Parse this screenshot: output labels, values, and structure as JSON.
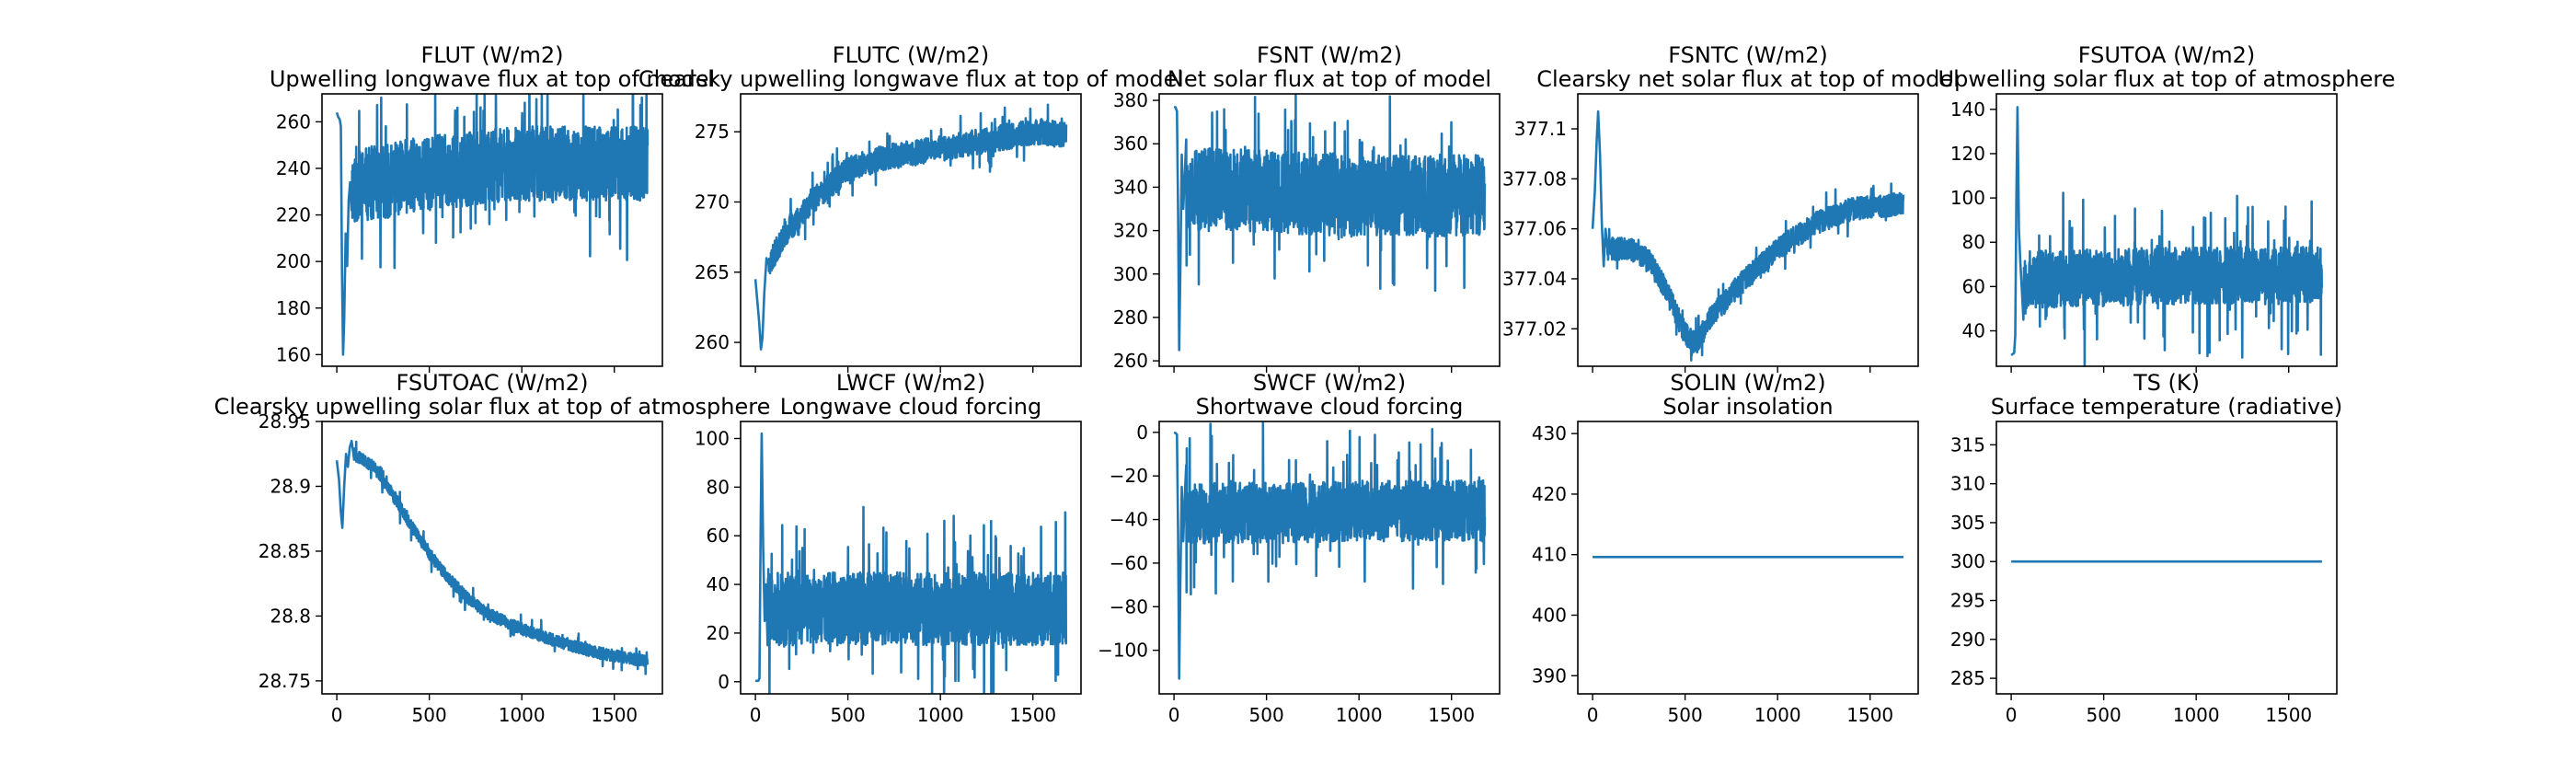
{
  "line_color": "#1f77b4",
  "chart_data": [
    {
      "type": "line",
      "title": "FLUT (W/m2)",
      "subtitle": "Upwelling longwave flux at top of model",
      "xlim": [
        -80,
        1760
      ],
      "ylim": [
        155,
        272
      ],
      "yticks": [
        160,
        180,
        200,
        220,
        240,
        260
      ],
      "xticks": [
        0,
        500,
        1000,
        1500
      ],
      "show_xticklabels": false,
      "series": [
        {
          "profile": "noisy",
          "x_end": 1680,
          "initial": [
            [
              0,
              264
            ],
            [
              8,
              262
            ],
            [
              16,
              261
            ],
            [
              22,
              258
            ],
            [
              28,
              196
            ],
            [
              34,
              160
            ],
            [
              40,
              175
            ],
            [
              48,
              212
            ],
            [
              56,
              198
            ],
            [
              64,
              226
            ],
            [
              72,
              234
            ],
            [
              80,
              222
            ]
          ],
          "noise_start": 80,
          "mean": [
            [
              80,
              232
            ],
            [
              500,
              238
            ],
            [
              1000,
              242
            ],
            [
              1680,
              242
            ]
          ],
          "amp": 16,
          "spike_prob": 0.05,
          "spike_amp": 28,
          "seed": 11
        }
      ]
    },
    {
      "type": "line",
      "title": "FLUTC (W/m2)",
      "subtitle": "Clearsky upwelling longwave flux at top of model",
      "xlim": [
        -80,
        1760
      ],
      "ylim": [
        258.3,
        277.7
      ],
      "yticks": [
        260,
        265,
        270,
        275
      ],
      "xticks": [
        0,
        500,
        1000,
        1500
      ],
      "show_xticklabels": false,
      "series": [
        {
          "profile": "noisy",
          "x_end": 1680,
          "initial": [
            [
              0,
              264.5
            ],
            [
              10,
              263
            ],
            [
              20,
              261.5
            ],
            [
              30,
              259.5
            ],
            [
              38,
              260.3
            ],
            [
              48,
              263.5
            ],
            [
              60,
              266
            ],
            [
              72,
              265.5
            ]
          ],
          "noise_start": 72,
          "mean": [
            [
              72,
              265.5
            ],
            [
              150,
              267.5
            ],
            [
              300,
              270
            ],
            [
              500,
              272.3
            ],
            [
              700,
              273.2
            ],
            [
              1000,
              273.8
            ],
            [
              1300,
              274.5
            ],
            [
              1500,
              275
            ],
            [
              1680,
              274.8
            ]
          ],
          "amp": 0.9,
          "spike_prob": 0.04,
          "spike_amp": 1.6,
          "seed": 23
        }
      ]
    },
    {
      "type": "line",
      "title": "FSNT (W/m2)",
      "subtitle": "Net solar flux at top of model",
      "xlim": [
        -80,
        1760
      ],
      "ylim": [
        257.5,
        383
      ],
      "yticks": [
        260,
        280,
        300,
        320,
        340,
        360,
        380
      ],
      "xticks": [
        0,
        500,
        1000,
        1500
      ],
      "show_xticklabels": false,
      "series": [
        {
          "profile": "noisy",
          "x_end": 1680,
          "initial": [
            [
              0,
              377
            ],
            [
              8,
              376.8
            ],
            [
              16,
              375
            ],
            [
              22,
              330
            ],
            [
              28,
              265
            ],
            [
              34,
              300
            ],
            [
              42,
              355
            ],
            [
              50,
              330
            ],
            [
              58,
              345
            ],
            [
              66,
              362
            ]
          ],
          "noise_start": 66,
          "mean": [
            [
              66,
              340
            ],
            [
              500,
              338
            ],
            [
              1000,
              336
            ],
            [
              1680,
              336
            ]
          ],
          "amp": 19,
          "spike_prob": 0.05,
          "spike_amp": 32,
          "seed": 37
        }
      ]
    },
    {
      "type": "line",
      "title": "FSNTC (W/m2)",
      "subtitle": "Clearsky net solar flux at top of model",
      "xlim": [
        -80,
        1760
      ],
      "ylim": [
        377.005,
        377.114
      ],
      "yticks": [
        377.02,
        377.04,
        377.06,
        377.08,
        377.1
      ],
      "xticks": [
        0,
        500,
        1000,
        1500
      ],
      "show_xticklabels": false,
      "series": [
        {
          "profile": "noisy",
          "x_end": 1680,
          "initial": [
            [
              0,
              377.06
            ],
            [
              12,
              377.075
            ],
            [
              22,
              377.095
            ],
            [
              30,
              377.107
            ],
            [
              40,
              377.09
            ],
            [
              50,
              377.062
            ],
            [
              60,
              377.045
            ],
            [
              70,
              377.06
            ],
            [
              80,
              377.052
            ]
          ],
          "noise_start": 80,
          "mean": [
            [
              80,
              377.052
            ],
            [
              200,
              377.052
            ],
            [
              300,
              377.048
            ],
            [
              400,
              377.035
            ],
            [
              500,
              377.018
            ],
            [
              560,
              377.014
            ],
            [
              650,
              377.026
            ],
            [
              800,
              377.038
            ],
            [
              1000,
              377.052
            ],
            [
              1200,
              377.062
            ],
            [
              1400,
              377.068
            ],
            [
              1680,
              377.07
            ]
          ],
          "amp": 0.0045,
          "spike_prob": 0.03,
          "spike_amp": 0.008,
          "seed": 41
        }
      ]
    },
    {
      "type": "line",
      "title": "FSUTOA (W/m2)",
      "subtitle": "Upwelling solar flux at top of atmosphere",
      "xlim": [
        -80,
        1760
      ],
      "ylim": [
        24,
        147
      ],
      "yticks": [
        40,
        60,
        80,
        100,
        120,
        140
      ],
      "xticks": [
        0,
        500,
        1000,
        1500
      ],
      "show_xticklabels": false,
      "series": [
        {
          "profile": "noisy",
          "x_end": 1680,
          "initial": [
            [
              0,
              29
            ],
            [
              8,
              29.5
            ],
            [
              16,
              30
            ],
            [
              22,
              38
            ],
            [
              28,
              100
            ],
            [
              34,
              141
            ],
            [
              42,
              85
            ],
            [
              50,
              70
            ],
            [
              58,
              58
            ],
            [
              66,
              45
            ]
          ],
          "noise_start": 66,
          "mean": [
            [
              66,
              63
            ],
            [
              500,
              64
            ],
            [
              1000,
              65
            ],
            [
              1680,
              65
            ]
          ],
          "amp": 13,
          "spike_prob": 0.05,
          "spike_amp": 30,
          "seed": 53
        }
      ]
    },
    {
      "type": "line",
      "title": "FSUTOAC (W/m2)",
      "subtitle": "Clearsky upwelling solar flux at top of atmosphere",
      "xlim": [
        -80,
        1760
      ],
      "ylim": [
        28.74,
        28.95
      ],
      "yticks": [
        28.75,
        28.8,
        28.85,
        28.9,
        28.95
      ],
      "xticks": [
        0,
        500,
        1000,
        1500
      ],
      "show_xticklabels": true,
      "series": [
        {
          "profile": "noisy",
          "x_end": 1680,
          "initial": [
            [
              0,
              28.92
            ],
            [
              12,
              28.905
            ],
            [
              22,
              28.88
            ],
            [
              30,
              28.868
            ],
            [
              40,
              28.9
            ],
            [
              50,
              28.925
            ],
            [
              60,
              28.915
            ],
            [
              70,
              28.93
            ],
            [
              80,
              28.935
            ],
            [
              90,
              28.925
            ]
          ],
          "noise_start": 90,
          "mean": [
            [
              90,
              28.925
            ],
            [
              200,
              28.915
            ],
            [
              300,
              28.895
            ],
            [
              400,
              28.87
            ],
            [
              500,
              28.848
            ],
            [
              600,
              28.83
            ],
            [
              700,
              28.815
            ],
            [
              800,
              28.803
            ],
            [
              1000,
              28.79
            ],
            [
              1200,
              28.78
            ],
            [
              1400,
              28.772
            ],
            [
              1680,
              28.765
            ]
          ],
          "amp": 0.0045,
          "spike_prob": 0.03,
          "spike_amp": 0.009,
          "seed": 67
        }
      ]
    },
    {
      "type": "line",
      "title": "LWCF (W/m2)",
      "subtitle": "Longwave cloud forcing",
      "xlim": [
        -80,
        1760
      ],
      "ylim": [
        -5,
        107
      ],
      "yticks": [
        0,
        20,
        40,
        60,
        80,
        100
      ],
      "xticks": [
        0,
        500,
        1000,
        1500
      ],
      "show_xticklabels": true,
      "series": [
        {
          "profile": "noisy",
          "x_end": 1680,
          "initial": [
            [
              0,
              0.5
            ],
            [
              8,
              0.3
            ],
            [
              16,
              0.4
            ],
            [
              22,
              1.5
            ],
            [
              28,
              60
            ],
            [
              34,
              102
            ],
            [
              42,
              55
            ],
            [
              50,
              25
            ],
            [
              58,
              40
            ],
            [
              66,
              15
            ]
          ],
          "noise_start": 66,
          "mean": [
            [
              66,
              30
            ],
            [
              500,
              30
            ],
            [
              1000,
              30
            ],
            [
              1680,
              30
            ]
          ],
          "amp": 15,
          "spike_prob": 0.05,
          "spike_amp": 30,
          "seed": 79
        }
      ]
    },
    {
      "type": "line",
      "title": "SWCF (W/m2)",
      "subtitle": "Shortwave cloud forcing",
      "xlim": [
        -80,
        1760
      ],
      "ylim": [
        -120,
        5
      ],
      "yticks": [
        -100,
        -80,
        -60,
        -40,
        -20,
        0
      ],
      "xticks": [
        0,
        500,
        1000,
        1500
      ],
      "show_xticklabels": true,
      "series": [
        {
          "profile": "noisy",
          "x_end": 1680,
          "initial": [
            [
              0,
              0
            ],
            [
              8,
              -0.3
            ],
            [
              16,
              -1
            ],
            [
              22,
              -45
            ],
            [
              28,
              -113
            ],
            [
              34,
              -70
            ],
            [
              42,
              -25
            ],
            [
              50,
              -50
            ],
            [
              58,
              -30
            ],
            [
              66,
              -15
            ]
          ],
          "noise_start": 66,
          "mean": [
            [
              66,
              -37
            ],
            [
              500,
              -37
            ],
            [
              1000,
              -36
            ],
            [
              1680,
              -36
            ]
          ],
          "amp": 14,
          "spike_prob": 0.05,
          "spike_amp": 30,
          "seed": 91
        }
      ]
    },
    {
      "type": "line",
      "title": "SOLIN (W/m2)",
      "subtitle": "Solar insolation",
      "xlim": [
        -80,
        1760
      ],
      "ylim": [
        387,
        432
      ],
      "yticks": [
        390,
        400,
        410,
        420,
        430
      ],
      "xticks": [
        0,
        500,
        1000,
        1500
      ],
      "show_xticklabels": true,
      "series": [
        {
          "profile": "constant",
          "x": [
            0,
            1680
          ],
          "y": [
            409.6,
            409.6
          ]
        }
      ]
    },
    {
      "type": "line",
      "title": "TS (K)",
      "subtitle": "Surface temperature (radiative)",
      "xlim": [
        -80,
        1760
      ],
      "ylim": [
        283,
        318
      ],
      "yticks": [
        285,
        290,
        295,
        300,
        305,
        310,
        315
      ],
      "xticks": [
        0,
        500,
        1000,
        1500
      ],
      "show_xticklabels": true,
      "series": [
        {
          "profile": "constant",
          "x": [
            0,
            1680
          ],
          "y": [
            300,
            300
          ]
        }
      ]
    }
  ]
}
